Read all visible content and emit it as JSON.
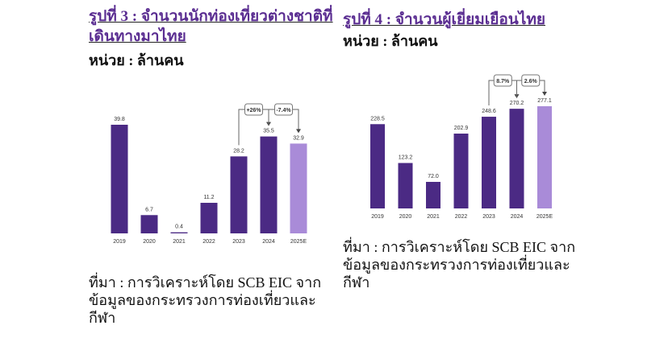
{
  "chart_data": [
    {
      "type": "bar",
      "title": "รูปที่ 3 : จำนวนนักท่องเที่ยวต่างชาติที่เดินทางมาไทย",
      "unit": "หน่วย : ล้านคน",
      "categories": [
        "2019",
        "2020",
        "2021",
        "2022",
        "2023",
        "2024",
        "2025E"
      ],
      "values": [
        39.8,
        6.7,
        0.4,
        11.2,
        28.2,
        35.5,
        32.9
      ],
      "colors": [
        "#4b2a84",
        "#4b2a84",
        "#4b2a84",
        "#4b2a84",
        "#4b2a84",
        "#4b2a84",
        "#a98bd8"
      ],
      "annotations": [
        "+26%",
        "-7.4%"
      ],
      "source": "ที่มา : การวิเคราะห์โดย SCB EIC จากข้อมูลของกระทรวงการท่องเที่ยวและกีฬา"
    },
    {
      "type": "bar",
      "title": "รูปที่ 4 : จำนวนผู้เยี่ยมเยือนไทย",
      "unit": "หน่วย : ล้านคน",
      "categories": [
        "2019",
        "2020",
        "2021",
        "2022",
        "2023",
        "2024",
        "2025E"
      ],
      "values": [
        228.5,
        123.2,
        72,
        202.9,
        248.6,
        270.2,
        277.1
      ],
      "value_labels": [
        "228.5",
        "123.2",
        "72.0",
        "202.9",
        "248.6",
        "270.2",
        "277.1"
      ],
      "colors": [
        "#4b2a84",
        "#4b2a84",
        "#4b2a84",
        "#4b2a84",
        "#4b2a84",
        "#4b2a84",
        "#a98bd8"
      ],
      "annotations": [
        "8.7%",
        "2.6%"
      ],
      "source": "ที่มา : การวิเคราะห์โดย SCB EIC จากข้อมูลของกระทรวงการท่องเที่ยวและกีฬา"
    }
  ]
}
